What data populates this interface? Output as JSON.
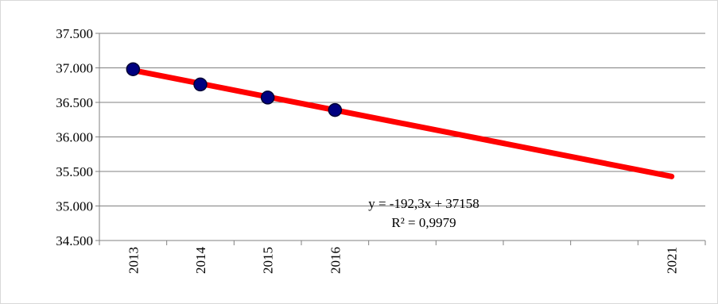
{
  "chart_data": {
    "type": "scatter",
    "title": "",
    "xlabel": "",
    "ylabel": "",
    "x_ticks": [
      "2013",
      "2014",
      "2015",
      "2016",
      "2021"
    ],
    "xlim": [
      2012.5,
      2021.5
    ],
    "ylim": [
      34500,
      37500
    ],
    "y_ticks": [
      34500,
      35000,
      35500,
      36000,
      36500,
      37000,
      37500
    ],
    "y_tick_labels": [
      "34.500",
      "35.000",
      "35.500",
      "36.000",
      "36.500",
      "37.000",
      "37.500"
    ],
    "grid": true,
    "legend": "none",
    "points": {
      "x": [
        2013,
        2014,
        2015,
        2016
      ],
      "y": [
        36980,
        36760,
        36570,
        36390
      ],
      "color": "#000080"
    },
    "trendline": {
      "type": "linear",
      "x_start": 2013,
      "x_end": 2021,
      "y_start": 36965,
      "y_end": 35427,
      "color": "#ff0000",
      "equation": "y = -192,3x + 37158",
      "r_squared": "R² = 0,9979"
    }
  }
}
